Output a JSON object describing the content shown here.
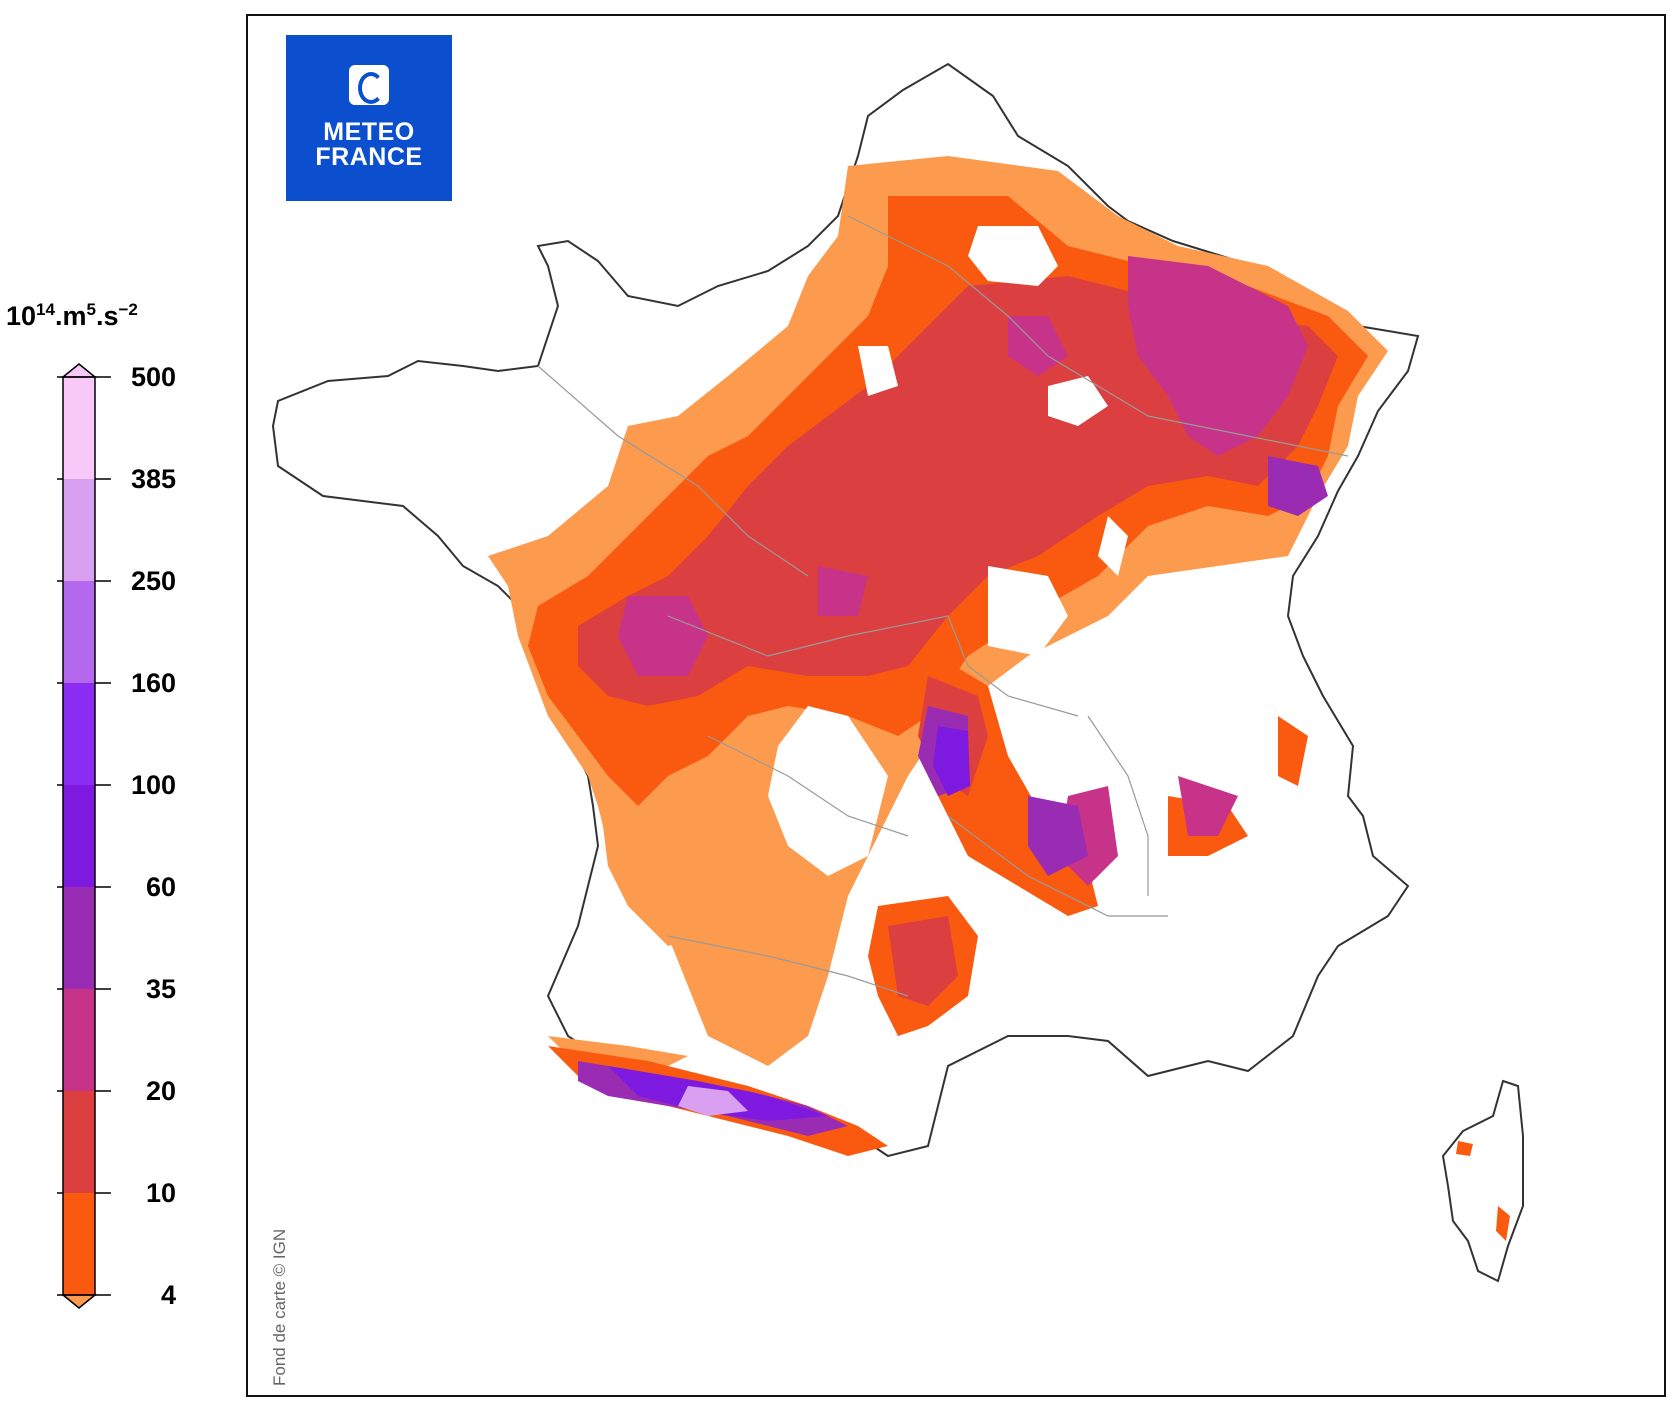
{
  "legend": {
    "unit_base": "10",
    "unit_exp": "14",
    "unit_mid": ".m",
    "unit_exp2": "5",
    "unit_mid2": ".s",
    "unit_exp3": "−2",
    "ticks": [
      "500",
      "385",
      "250",
      "160",
      "100",
      "60",
      "35",
      "20",
      "10",
      "4"
    ],
    "colors": [
      "#f8c8f8",
      "#d9a0f2",
      "#b468ee",
      "#8a2cf2",
      "#7e19df",
      "#9a2cb4",
      "#c63389",
      "#dc3f3f",
      "#fa5a10",
      "#fc9a4e"
    ]
  },
  "map": {
    "logo_line1": "METEO",
    "logo_line2": "FRANCE",
    "credit": "Fond de carte © IGN"
  }
}
